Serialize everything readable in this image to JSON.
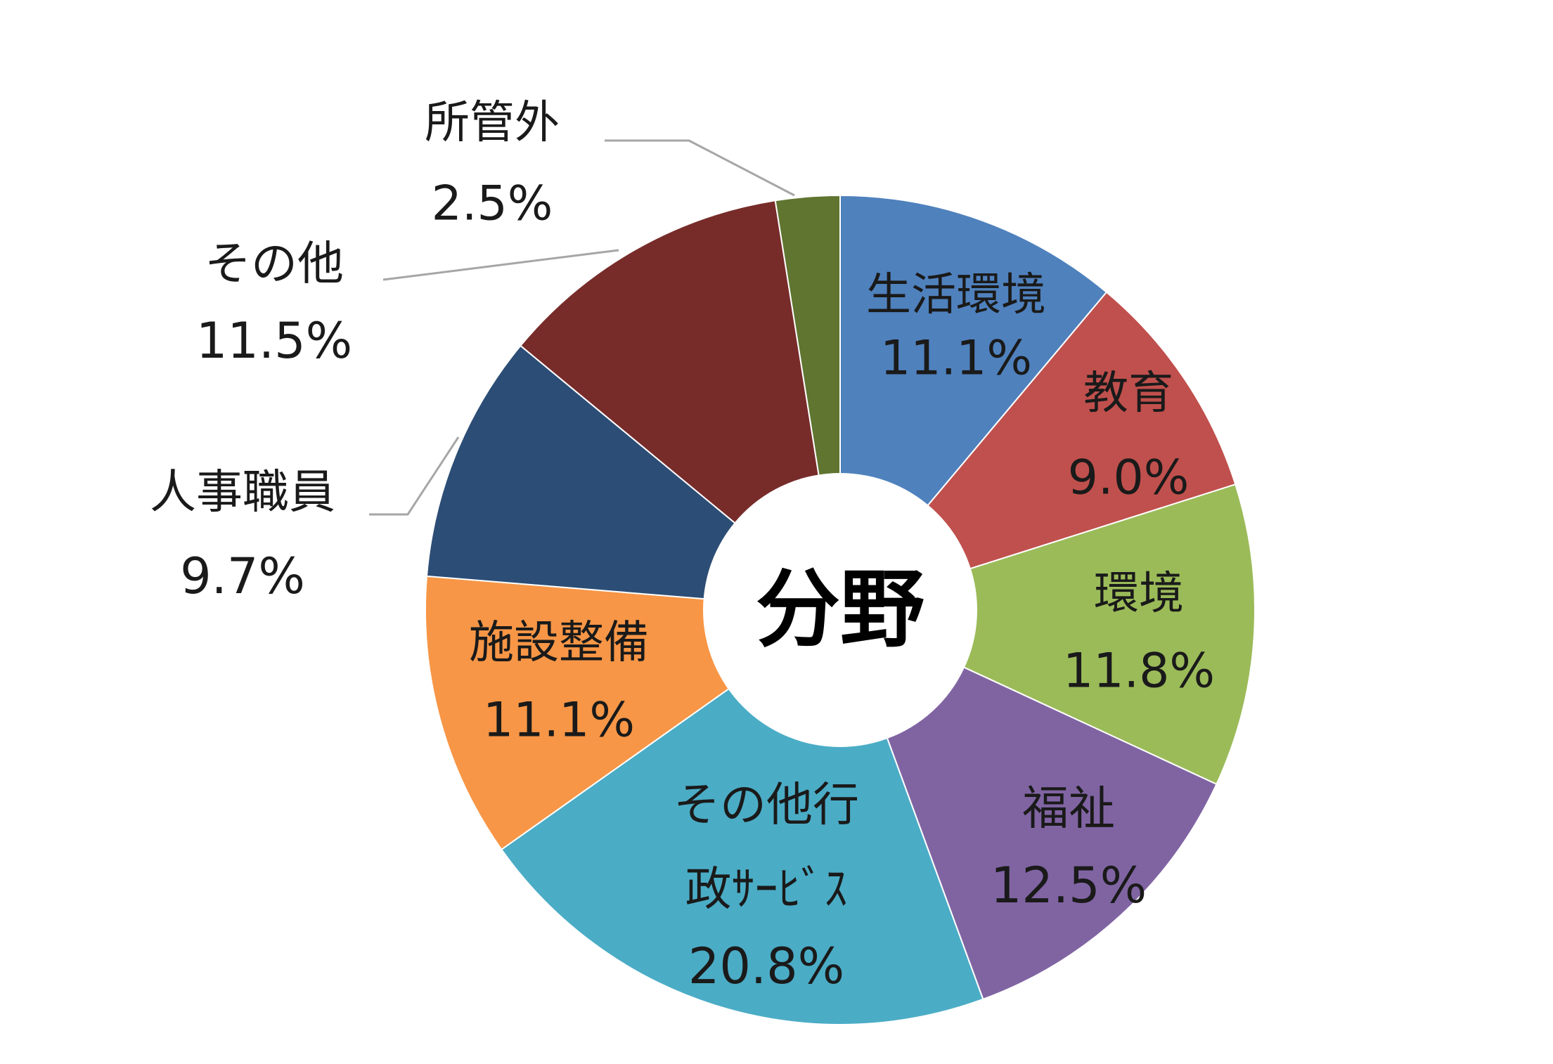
{
  "chart_data": {
    "type": "pie",
    "center_label": "分野",
    "categories": [
      "生活環境",
      "教育",
      "環境",
      "福祉",
      "その他行政ｻｰﾋﾞｽ",
      "施設整備",
      "人事職員",
      "その他",
      "所管外"
    ],
    "values": [
      11.1,
      9.0,
      11.8,
      12.5,
      20.8,
      11.1,
      9.7,
      11.5,
      2.5
    ],
    "slices": [
      {
        "name": "生活環境",
        "label_lines": [
          "生活環境"
        ],
        "value": 11.1,
        "value_text": "11.1%",
        "color": "#4F81BD",
        "label_outside": false
      },
      {
        "name": "教育",
        "label_lines": [
          "教育"
        ],
        "value": 9.0,
        "value_text": "9.0%",
        "color": "#C0504D",
        "label_outside": false
      },
      {
        "name": "環境",
        "label_lines": [
          "環境"
        ],
        "value": 11.8,
        "value_text": "11.8%",
        "color": "#9BBB59",
        "label_outside": false
      },
      {
        "name": "福祉",
        "label_lines": [
          "福祉"
        ],
        "value": 12.5,
        "value_text": "12.5%",
        "color": "#8064A2",
        "label_outside": false
      },
      {
        "name": "その他行政ｻｰﾋﾞｽ",
        "label_lines": [
          "その他行",
          "政ｻｰﾋﾞｽ"
        ],
        "value": 20.8,
        "value_text": "20.8%",
        "color": "#4BACC6",
        "label_outside": false
      },
      {
        "name": "施設整備",
        "label_lines": [
          "施設整備"
        ],
        "value": 11.1,
        "value_text": "11.1%",
        "color": "#F79646",
        "label_outside": false
      },
      {
        "name": "人事職員",
        "label_lines": [
          "人事職員"
        ],
        "value": 9.7,
        "value_text": "9.7%",
        "color": "#2C4D75",
        "label_outside": true
      },
      {
        "name": "その他",
        "label_lines": [
          "その他"
        ],
        "value": 11.5,
        "value_text": "11.5%",
        "color": "#772C2A",
        "label_outside": true
      },
      {
        "name": "所管外",
        "label_lines": [
          "所管外"
        ],
        "value": 2.5,
        "value_text": "2.5%",
        "color": "#5F7530",
        "label_outside": true
      }
    ],
    "start_angle_deg": 0,
    "direction": "clockwise",
    "donut": true,
    "legend": "none"
  }
}
